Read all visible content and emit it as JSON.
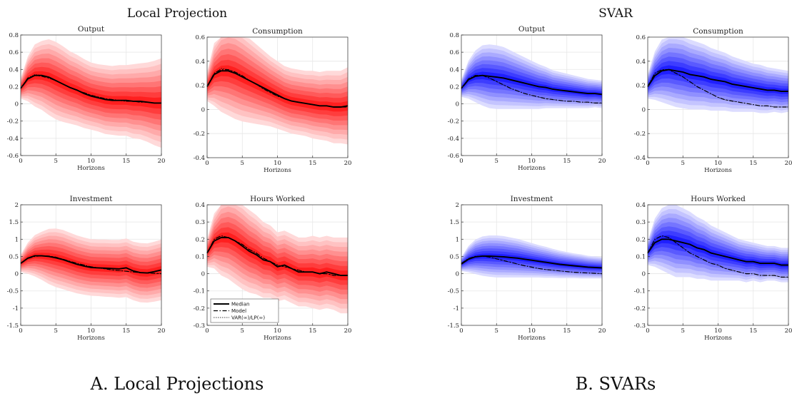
{
  "headings": {
    "left": "Local Projection",
    "right": "SVAR"
  },
  "captions": {
    "left": "A. Local Projections",
    "right": "B. SVARs"
  },
  "legend": {
    "median": "Median",
    "model": "Model",
    "var": "VAR(∞)/LP(∞)"
  },
  "colors": {
    "lp_band": "#ff0000",
    "svar_band": "#0000ff",
    "line": "#000000",
    "grid": "#e6e6e6",
    "axis": "#333333"
  },
  "chart_data": [
    {
      "type": "area",
      "panel": "A",
      "method": "Local Projection",
      "title": "Output",
      "xlabel": "Horizons",
      "xlim": [
        0,
        20
      ],
      "ylim": [
        -0.6,
        0.8
      ],
      "xticks": [
        0,
        5,
        10,
        15,
        20
      ],
      "yticks": [
        -0.6,
        -0.4,
        -0.2,
        0,
        0.2,
        0.4,
        0.6,
        0.8
      ],
      "grid": true,
      "band_color": "red",
      "x": [
        0,
        1,
        2,
        3,
        4,
        5,
        6,
        7,
        8,
        9,
        10,
        11,
        12,
        13,
        14,
        15,
        16,
        17,
        18,
        19,
        20
      ],
      "median": [
        0.18,
        0.29,
        0.33,
        0.33,
        0.31,
        0.27,
        0.23,
        0.19,
        0.16,
        0.12,
        0.09,
        0.07,
        0.05,
        0.04,
        0.04,
        0.04,
        0.03,
        0.03,
        0.02,
        0.01,
        0.01
      ],
      "model": [
        0.18,
        0.3,
        0.33,
        0.32,
        0.3,
        0.27,
        0.23,
        0.19,
        0.16,
        0.13,
        0.1,
        0.08,
        0.06,
        0.05,
        0.04,
        0.03,
        0.03,
        0.02,
        0.02,
        0.01,
        0.01
      ],
      "var_lp": [
        0.18,
        0.3,
        0.34,
        0.33,
        0.3,
        0.27,
        0.23,
        0.19,
        0.16,
        0.13,
        0.1,
        0.08,
        0.06,
        0.05,
        0.04,
        0.03,
        0.03,
        0.02,
        0.02,
        0.01,
        0.01
      ],
      "band_outer": [
        0.12,
        0.26,
        0.36,
        0.4,
        0.44,
        0.45,
        0.44,
        0.42,
        0.41,
        0.4,
        0.39,
        0.39,
        0.4,
        0.4,
        0.41,
        0.41,
        0.43,
        0.44,
        0.46,
        0.49,
        0.52
      ]
    },
    {
      "type": "area",
      "panel": "A",
      "method": "Local Projection",
      "title": "Consumption",
      "xlabel": "Horizons",
      "xlim": [
        0,
        20
      ],
      "ylim": [
        -0.4,
        0.6
      ],
      "xticks": [
        0,
        5,
        10,
        15,
        20
      ],
      "yticks": [
        -0.4,
        -0.2,
        0,
        0.2,
        0.4,
        0.6
      ],
      "grid": true,
      "band_color": "red",
      "x": [
        0,
        1,
        2,
        3,
        4,
        5,
        6,
        7,
        8,
        9,
        10,
        11,
        12,
        13,
        14,
        15,
        16,
        17,
        18,
        19,
        20
      ],
      "median": [
        0.19,
        0.29,
        0.32,
        0.32,
        0.3,
        0.27,
        0.24,
        0.21,
        0.18,
        0.15,
        0.12,
        0.09,
        0.07,
        0.06,
        0.05,
        0.04,
        0.03,
        0.03,
        0.02,
        0.02,
        0.03
      ],
      "model": [
        0.19,
        0.3,
        0.33,
        0.33,
        0.31,
        0.28,
        0.24,
        0.21,
        0.17,
        0.14,
        0.11,
        0.09,
        0.07,
        0.06,
        0.05,
        0.04,
        0.03,
        0.03,
        0.02,
        0.02,
        0.02
      ],
      "var_lp": [
        0.19,
        0.3,
        0.34,
        0.33,
        0.31,
        0.28,
        0.24,
        0.21,
        0.17,
        0.14,
        0.11,
        0.09,
        0.07,
        0.06,
        0.05,
        0.04,
        0.03,
        0.03,
        0.02,
        0.02,
        0.02
      ],
      "band_outer": [
        0.12,
        0.26,
        0.34,
        0.37,
        0.38,
        0.37,
        0.35,
        0.33,
        0.31,
        0.29,
        0.28,
        0.27,
        0.27,
        0.27,
        0.27,
        0.28,
        0.28,
        0.29,
        0.3,
        0.3,
        0.32
      ]
    },
    {
      "type": "area",
      "panel": "A",
      "method": "Local Projection",
      "title": "Investment",
      "xlabel": "Horizons",
      "xlim": [
        0,
        20
      ],
      "ylim": [
        -1.5,
        2
      ],
      "xticks": [
        0,
        5,
        10,
        15,
        20
      ],
      "yticks": [
        -1.5,
        -1,
        -0.5,
        0,
        0.5,
        1,
        1.5,
        2
      ],
      "grid": true,
      "band_color": "red",
      "x": [
        0,
        1,
        2,
        3,
        4,
        5,
        6,
        7,
        8,
        9,
        10,
        11,
        12,
        13,
        14,
        15,
        16,
        17,
        18,
        19,
        20
      ],
      "median": [
        0.3,
        0.45,
        0.52,
        0.52,
        0.5,
        0.46,
        0.41,
        0.34,
        0.27,
        0.22,
        0.18,
        0.17,
        0.16,
        0.15,
        0.14,
        0.17,
        0.08,
        0.03,
        0.02,
        0.06,
        0.11
      ],
      "model": [
        0.3,
        0.44,
        0.5,
        0.52,
        0.51,
        0.48,
        0.42,
        0.36,
        0.3,
        0.25,
        0.2,
        0.17,
        0.14,
        0.11,
        0.09,
        0.07,
        0.05,
        0.03,
        0.02,
        0.01,
        0.0
      ],
      "var_lp": [
        0.3,
        0.45,
        0.51,
        0.52,
        0.51,
        0.48,
        0.42,
        0.36,
        0.3,
        0.25,
        0.2,
        0.17,
        0.14,
        0.11,
        0.09,
        0.07,
        0.05,
        0.03,
        0.02,
        0.01,
        0.0
      ],
      "band_outer": [
        0.25,
        0.45,
        0.6,
        0.7,
        0.8,
        0.85,
        0.86,
        0.85,
        0.84,
        0.83,
        0.82,
        0.82,
        0.83,
        0.83,
        0.84,
        0.85,
        0.85,
        0.86,
        0.86,
        0.87,
        0.88
      ]
    },
    {
      "type": "area",
      "panel": "A",
      "method": "Local Projection",
      "title": "Hours Worked",
      "xlabel": "Horizons",
      "xlim": [
        0,
        20
      ],
      "ylim": [
        -0.3,
        0.4
      ],
      "xticks": [
        0,
        5,
        10,
        15,
        20
      ],
      "yticks": [
        -0.3,
        -0.2,
        -0.1,
        0,
        0.1,
        0.2,
        0.3,
        0.4
      ],
      "grid": true,
      "band_color": "red",
      "x": [
        0,
        1,
        2,
        3,
        4,
        5,
        6,
        7,
        8,
        9,
        10,
        11,
        12,
        13,
        14,
        15,
        16,
        17,
        18,
        19,
        20
      ],
      "median": [
        0.12,
        0.19,
        0.21,
        0.21,
        0.19,
        0.16,
        0.13,
        0.11,
        0.08,
        0.07,
        0.04,
        0.05,
        0.03,
        0.01,
        0.01,
        0.01,
        0.0,
        0.01,
        0.0,
        -0.01,
        -0.01
      ],
      "model": [
        0.12,
        0.2,
        0.22,
        0.21,
        0.19,
        0.17,
        0.14,
        0.12,
        0.09,
        0.07,
        0.05,
        0.04,
        0.03,
        0.02,
        0.01,
        0.01,
        0.0,
        0.0,
        -0.01,
        -0.01,
        -0.01
      ],
      "var_lp": [
        0.12,
        0.2,
        0.22,
        0.21,
        0.19,
        0.17,
        0.14,
        0.12,
        0.09,
        0.07,
        0.05,
        0.04,
        0.03,
        0.02,
        0.01,
        0.01,
        0.0,
        0.0,
        -0.01,
        -0.01,
        -0.01
      ],
      "band_outer": [
        0.08,
        0.16,
        0.22,
        0.24,
        0.25,
        0.25,
        0.24,
        0.23,
        0.22,
        0.21,
        0.2,
        0.2,
        0.2,
        0.2,
        0.2,
        0.21,
        0.21,
        0.21,
        0.21,
        0.22,
        0.22
      ],
      "legend": true
    },
    {
      "type": "area",
      "panel": "B",
      "method": "SVAR",
      "title": "Output",
      "xlabel": "Horizons",
      "xlim": [
        0,
        20
      ],
      "ylim": [
        -0.6,
        0.8
      ],
      "xticks": [
        0,
        5,
        10,
        15,
        20
      ],
      "yticks": [
        -0.6,
        -0.4,
        -0.2,
        0,
        0.2,
        0.4,
        0.6,
        0.8
      ],
      "grid": true,
      "band_color": "blue",
      "x": [
        0,
        1,
        2,
        3,
        4,
        5,
        6,
        7,
        8,
        9,
        10,
        11,
        12,
        13,
        14,
        15,
        16,
        17,
        18,
        19,
        20
      ],
      "median": [
        0.18,
        0.28,
        0.32,
        0.33,
        0.32,
        0.31,
        0.3,
        0.28,
        0.26,
        0.24,
        0.22,
        0.2,
        0.19,
        0.17,
        0.16,
        0.15,
        0.14,
        0.13,
        0.12,
        0.12,
        0.11
      ],
      "model": [
        0.18,
        0.29,
        0.33,
        0.33,
        0.3,
        0.26,
        0.22,
        0.18,
        0.15,
        0.12,
        0.1,
        0.08,
        0.06,
        0.05,
        0.04,
        0.03,
        0.03,
        0.02,
        0.02,
        0.01,
        0.01
      ],
      "var_lp": [
        0.18,
        0.29,
        0.33,
        0.33,
        0.3,
        0.26,
        0.22,
        0.18,
        0.15,
        0.12,
        0.1,
        0.08,
        0.06,
        0.05,
        0.04,
        0.03,
        0.03,
        0.02,
        0.02,
        0.01,
        0.01
      ],
      "band_outer": [
        0.1,
        0.22,
        0.3,
        0.35,
        0.37,
        0.37,
        0.36,
        0.34,
        0.32,
        0.3,
        0.28,
        0.26,
        0.24,
        0.22,
        0.21,
        0.2,
        0.19,
        0.18,
        0.17,
        0.16,
        0.16
      ]
    },
    {
      "type": "area",
      "panel": "B",
      "method": "SVAR",
      "title": "Consumption",
      "xlabel": "Horizons",
      "xlim": [
        0,
        20
      ],
      "ylim": [
        -0.4,
        0.6
      ],
      "xticks": [
        0,
        5,
        10,
        15,
        20
      ],
      "yticks": [
        -0.4,
        -0.2,
        0,
        0.2,
        0.4,
        0.6
      ],
      "grid": true,
      "band_color": "blue",
      "x": [
        0,
        1,
        2,
        3,
        4,
        5,
        6,
        7,
        8,
        9,
        10,
        11,
        12,
        13,
        14,
        15,
        16,
        17,
        18,
        19,
        20
      ],
      "median": [
        0.19,
        0.28,
        0.32,
        0.33,
        0.32,
        0.31,
        0.29,
        0.28,
        0.27,
        0.25,
        0.24,
        0.23,
        0.21,
        0.2,
        0.19,
        0.18,
        0.17,
        0.16,
        0.16,
        0.15,
        0.15
      ],
      "model": [
        0.19,
        0.3,
        0.33,
        0.33,
        0.3,
        0.27,
        0.23,
        0.19,
        0.16,
        0.13,
        0.1,
        0.08,
        0.07,
        0.06,
        0.05,
        0.04,
        0.03,
        0.03,
        0.02,
        0.02,
        0.02
      ],
      "var_lp": [
        0.19,
        0.3,
        0.33,
        0.33,
        0.3,
        0.27,
        0.23,
        0.19,
        0.16,
        0.13,
        0.1,
        0.08,
        0.07,
        0.06,
        0.05,
        0.04,
        0.03,
        0.03,
        0.02,
        0.02,
        0.02
      ],
      "band_outer": [
        0.1,
        0.2,
        0.26,
        0.29,
        0.3,
        0.3,
        0.29,
        0.28,
        0.27,
        0.26,
        0.25,
        0.24,
        0.23,
        0.22,
        0.21,
        0.2,
        0.2,
        0.19,
        0.18,
        0.18,
        0.17
      ]
    },
    {
      "type": "area",
      "panel": "B",
      "method": "SVAR",
      "title": "Investment",
      "xlabel": "Horizons",
      "xlim": [
        0,
        20
      ],
      "ylim": [
        -1.5,
        2
      ],
      "xticks": [
        0,
        5,
        10,
        15,
        20
      ],
      "yticks": [
        -1.5,
        -1,
        -0.5,
        0,
        0.5,
        1,
        1.5,
        2
      ],
      "grid": true,
      "band_color": "blue",
      "x": [
        0,
        1,
        2,
        3,
        4,
        5,
        6,
        7,
        8,
        9,
        10,
        11,
        12,
        13,
        14,
        15,
        16,
        17,
        18,
        19,
        20
      ],
      "median": [
        0.28,
        0.42,
        0.49,
        0.51,
        0.51,
        0.5,
        0.49,
        0.47,
        0.45,
        0.42,
        0.39,
        0.36,
        0.33,
        0.3,
        0.27,
        0.25,
        0.23,
        0.21,
        0.19,
        0.18,
        0.17
      ],
      "model": [
        0.3,
        0.44,
        0.5,
        0.51,
        0.48,
        0.43,
        0.38,
        0.33,
        0.28,
        0.23,
        0.19,
        0.15,
        0.12,
        0.1,
        0.08,
        0.06,
        0.04,
        0.03,
        0.02,
        0.01,
        0.0
      ],
      "var_lp": [
        0.3,
        0.44,
        0.5,
        0.51,
        0.48,
        0.43,
        0.38,
        0.33,
        0.28,
        0.23,
        0.19,
        0.15,
        0.12,
        0.1,
        0.08,
        0.06,
        0.04,
        0.03,
        0.02,
        0.01,
        0.0
      ],
      "band_outer": [
        0.2,
        0.38,
        0.5,
        0.57,
        0.6,
        0.61,
        0.6,
        0.58,
        0.56,
        0.53,
        0.5,
        0.47,
        0.45,
        0.42,
        0.4,
        0.38,
        0.36,
        0.35,
        0.33,
        0.32,
        0.31
      ]
    },
    {
      "type": "area",
      "panel": "B",
      "method": "SVAR",
      "title": "Hours Worked",
      "xlabel": "Horizons",
      "xlim": [
        0,
        20
      ],
      "ylim": [
        -0.3,
        0.4
      ],
      "xticks": [
        0,
        5,
        10,
        15,
        20
      ],
      "yticks": [
        -0.3,
        -0.2,
        -0.1,
        0,
        0.1,
        0.2,
        0.3,
        0.4
      ],
      "grid": true,
      "band_color": "blue",
      "x": [
        0,
        1,
        2,
        3,
        4,
        5,
        6,
        7,
        8,
        9,
        10,
        11,
        12,
        13,
        14,
        15,
        16,
        17,
        18,
        19,
        20
      ],
      "median": [
        0.12,
        0.18,
        0.2,
        0.2,
        0.19,
        0.18,
        0.17,
        0.15,
        0.14,
        0.12,
        0.11,
        0.1,
        0.09,
        0.08,
        0.07,
        0.07,
        0.06,
        0.06,
        0.06,
        0.05,
        0.05
      ],
      "model": [
        0.12,
        0.2,
        0.22,
        0.21,
        0.18,
        0.15,
        0.12,
        0.1,
        0.08,
        0.06,
        0.05,
        0.03,
        0.02,
        0.01,
        0.0,
        0.0,
        -0.01,
        -0.01,
        -0.01,
        -0.02,
        -0.02
      ],
      "var_lp": [
        0.12,
        0.2,
        0.22,
        0.21,
        0.18,
        0.15,
        0.12,
        0.1,
        0.08,
        0.06,
        0.05,
        0.03,
        0.02,
        0.01,
        0.0,
        0.0,
        -0.01,
        -0.01,
        -0.01,
        -0.02,
        -0.02
      ],
      "band_outer": [
        0.07,
        0.14,
        0.18,
        0.2,
        0.21,
        0.2,
        0.19,
        0.18,
        0.17,
        0.16,
        0.15,
        0.14,
        0.13,
        0.12,
        0.12,
        0.11,
        0.11,
        0.1,
        0.1,
        0.1,
        0.1
      ]
    }
  ]
}
